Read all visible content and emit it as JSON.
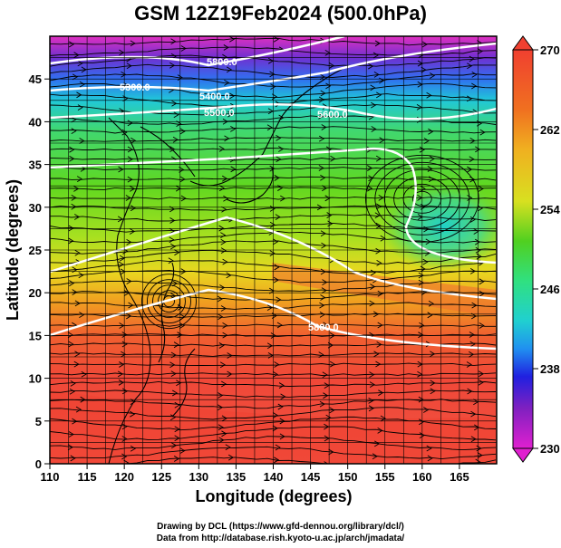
{
  "title": "GSM 12Z19Feb2024 (500.0hPa)",
  "xaxis": {
    "label": "Longitude (degrees)",
    "range": [
      110,
      170
    ],
    "ticks": [
      "110",
      "115",
      "120",
      "125",
      "130",
      "135",
      "140",
      "145",
      "150",
      "155",
      "160",
      "165"
    ]
  },
  "yaxis": {
    "label": "Latitude  (degrees)",
    "range": [
      0,
      50
    ],
    "ticks": [
      "0",
      "5",
      "10",
      "15",
      "20",
      "25",
      "30",
      "35",
      "40",
      "45"
    ]
  },
  "colorbar": {
    "ticks": [
      "270",
      "262",
      "254",
      "246",
      "238",
      "230"
    ],
    "range": [
      230,
      270
    ],
    "colors": [
      "#e020d0",
      "#8020c0",
      "#2020e0",
      "#2090f0",
      "#20d0d0",
      "#30e080",
      "#50d020",
      "#90e020",
      "#d8e020",
      "#f0b020",
      "#f07020",
      "#f04030"
    ]
  },
  "contour_labels": [
    "5300.0",
    "5400.0",
    "5500.0",
    "5600.0",
    "5800.0",
    "5800.0"
  ],
  "credits": {
    "line1": "Drawing by DCL (https://www.gfd-dennou.org/library/dcl/)",
    "line2": "Data from http://database.rish.kyoto-u.ac.jp/arch/jmadata/"
  }
}
